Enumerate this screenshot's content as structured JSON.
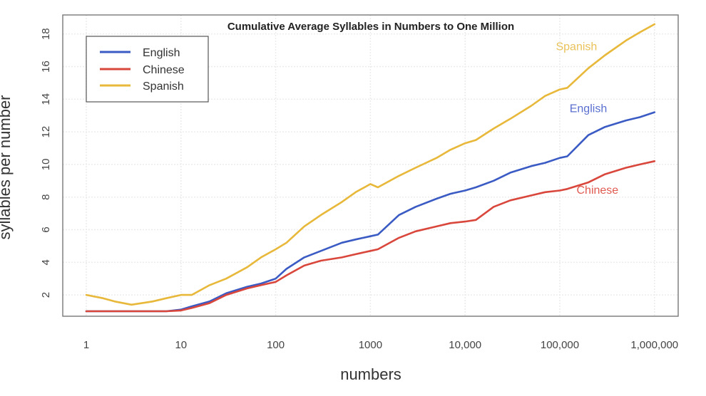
{
  "chart_data": {
    "type": "line",
    "title": "Cumulative Average Syllables in Numbers to One Million",
    "xlabel": "numbers",
    "ylabel": "syllables per number",
    "xscale": "log10",
    "xlim": [
      1,
      1000000
    ],
    "ylim": [
      1,
      18.7
    ],
    "grid": true,
    "legend_position": "top-left",
    "x_ticks": [
      {
        "value": 1,
        "label": "1"
      },
      {
        "value": 10,
        "label": "10"
      },
      {
        "value": 100,
        "label": "100"
      },
      {
        "value": 1000,
        "label": "1000"
      },
      {
        "value": 10000,
        "label": "10,000"
      },
      {
        "value": 100000,
        "label": "100,000"
      },
      {
        "value": 1000000,
        "label": "1,000,000"
      }
    ],
    "y_ticks": [
      {
        "value": 2,
        "label": "2"
      },
      {
        "value": 4,
        "label": "4"
      },
      {
        "value": 6,
        "label": "6"
      },
      {
        "value": 8,
        "label": "8"
      },
      {
        "value": 10,
        "label": "10"
      },
      {
        "value": 12,
        "label": "12"
      },
      {
        "value": 14,
        "label": "14"
      },
      {
        "value": 16,
        "label": "16"
      },
      {
        "value": 18,
        "label": "18"
      }
    ],
    "series": [
      {
        "name": "English",
        "color": "#3b5bc4",
        "label_color": "#5a6fd0",
        "label": "English",
        "label_at": [
          200000,
          13.2
        ],
        "points": [
          [
            1,
            1.0
          ],
          [
            2,
            1.0
          ],
          [
            3,
            1.0
          ],
          [
            5,
            1.0
          ],
          [
            7,
            1.0
          ],
          [
            10,
            1.1
          ],
          [
            13,
            1.3
          ],
          [
            20,
            1.6
          ],
          [
            30,
            2.1
          ],
          [
            50,
            2.5
          ],
          [
            70,
            2.7
          ],
          [
            100,
            3.0
          ],
          [
            130,
            3.6
          ],
          [
            200,
            4.3
          ],
          [
            300,
            4.7
          ],
          [
            500,
            5.2
          ],
          [
            700,
            5.4
          ],
          [
            1000,
            5.6
          ],
          [
            1200,
            5.7
          ],
          [
            2000,
            6.9
          ],
          [
            3000,
            7.4
          ],
          [
            5000,
            7.9
          ],
          [
            7000,
            8.2
          ],
          [
            10000,
            8.4
          ],
          [
            13000,
            8.6
          ],
          [
            20000,
            9.0
          ],
          [
            30000,
            9.5
          ],
          [
            50000,
            9.9
          ],
          [
            70000,
            10.1
          ],
          [
            100000,
            10.4
          ],
          [
            120000,
            10.5
          ],
          [
            200000,
            11.8
          ],
          [
            300000,
            12.3
          ],
          [
            500000,
            12.7
          ],
          [
            700000,
            12.9
          ],
          [
            1000000,
            13.2
          ]
        ]
      },
      {
        "name": "Chinese",
        "color": "#d9463b",
        "label_color": "#e05a50",
        "label": "Chinese",
        "label_at": [
          250000,
          8.2
        ],
        "points": [
          [
            1,
            1.0
          ],
          [
            2,
            1.0
          ],
          [
            3,
            1.0
          ],
          [
            5,
            1.0
          ],
          [
            7,
            1.0
          ],
          [
            10,
            1.05
          ],
          [
            13,
            1.2
          ],
          [
            20,
            1.5
          ],
          [
            30,
            2.0
          ],
          [
            50,
            2.4
          ],
          [
            70,
            2.6
          ],
          [
            100,
            2.8
          ],
          [
            130,
            3.2
          ],
          [
            200,
            3.8
          ],
          [
            300,
            4.1
          ],
          [
            500,
            4.3
          ],
          [
            700,
            4.5
          ],
          [
            1000,
            4.7
          ],
          [
            1200,
            4.8
          ],
          [
            2000,
            5.5
          ],
          [
            3000,
            5.9
          ],
          [
            5000,
            6.2
          ],
          [
            7000,
            6.4
          ],
          [
            10000,
            6.5
          ],
          [
            13000,
            6.6
          ],
          [
            20000,
            7.4
          ],
          [
            30000,
            7.8
          ],
          [
            50000,
            8.1
          ],
          [
            70000,
            8.3
          ],
          [
            100000,
            8.4
          ],
          [
            120000,
            8.5
          ],
          [
            200000,
            8.9
          ],
          [
            300000,
            9.4
          ],
          [
            500000,
            9.8
          ],
          [
            700000,
            10.0
          ],
          [
            1000000,
            10.2
          ]
        ]
      },
      {
        "name": "Spanish",
        "color": "#e8b83a",
        "label_color": "#e9c25a",
        "label": "Spanish",
        "label_at": [
          150000,
          17.0
        ],
        "points": [
          [
            1,
            2.0
          ],
          [
            1.5,
            1.8
          ],
          [
            2,
            1.6
          ],
          [
            3,
            1.4
          ],
          [
            5,
            1.6
          ],
          [
            7,
            1.8
          ],
          [
            10,
            2.0
          ],
          [
            13,
            2.0
          ],
          [
            20,
            2.6
          ],
          [
            30,
            3.0
          ],
          [
            50,
            3.7
          ],
          [
            70,
            4.3
          ],
          [
            100,
            4.8
          ],
          [
            130,
            5.2
          ],
          [
            200,
            6.2
          ],
          [
            300,
            6.9
          ],
          [
            500,
            7.7
          ],
          [
            700,
            8.3
          ],
          [
            1000,
            8.8
          ],
          [
            1200,
            8.6
          ],
          [
            2000,
            9.3
          ],
          [
            3000,
            9.8
          ],
          [
            5000,
            10.4
          ],
          [
            7000,
            10.9
          ],
          [
            10000,
            11.3
          ],
          [
            13000,
            11.5
          ],
          [
            20000,
            12.2
          ],
          [
            30000,
            12.8
          ],
          [
            50000,
            13.6
          ],
          [
            70000,
            14.2
          ],
          [
            100000,
            14.6
          ],
          [
            120000,
            14.7
          ],
          [
            200000,
            15.9
          ],
          [
            300000,
            16.7
          ],
          [
            500000,
            17.6
          ],
          [
            700000,
            18.1
          ],
          [
            1000000,
            18.6
          ]
        ]
      }
    ]
  }
}
